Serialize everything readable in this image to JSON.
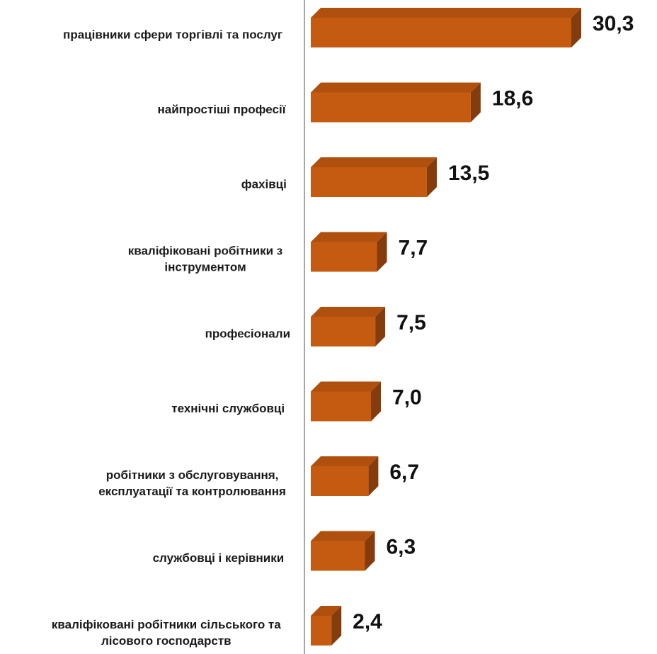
{
  "colors": {
    "bar_front": "#C55A11",
    "bar_top": "#B0500E",
    "bar_side": "#843C0C",
    "axis": "#A6A6A6"
  },
  "chart_data": {
    "type": "bar",
    "orientation": "horizontal",
    "style": "3d",
    "grid": false,
    "legend": "none",
    "categories": [
      [
        "працівники сфери торгівлі та послуг"
      ],
      [
        "найпростіші професії"
      ],
      [
        "фахівці"
      ],
      [
        "кваліфіковані робітники з",
        "інструментом"
      ],
      [
        "професіонали"
      ],
      [
        "технічні службовці"
      ],
      [
        "робітники з обслуговування,",
        "експлуатації та контролювання"
      ],
      [
        "службовці і керівники"
      ],
      [
        "кваліфіковані робітники сільського та",
        "лісового господарств"
      ]
    ],
    "values": [
      30.3,
      18.6,
      13.5,
      7.7,
      7.5,
      7.0,
      6.7,
      6.3,
      2.4
    ],
    "value_labels": [
      "30,3",
      "18,6",
      "13,5",
      "7,7",
      "7,5",
      "7,0",
      "6,7",
      "6,3",
      "2,4"
    ],
    "xlim": [
      0,
      30.3
    ]
  }
}
